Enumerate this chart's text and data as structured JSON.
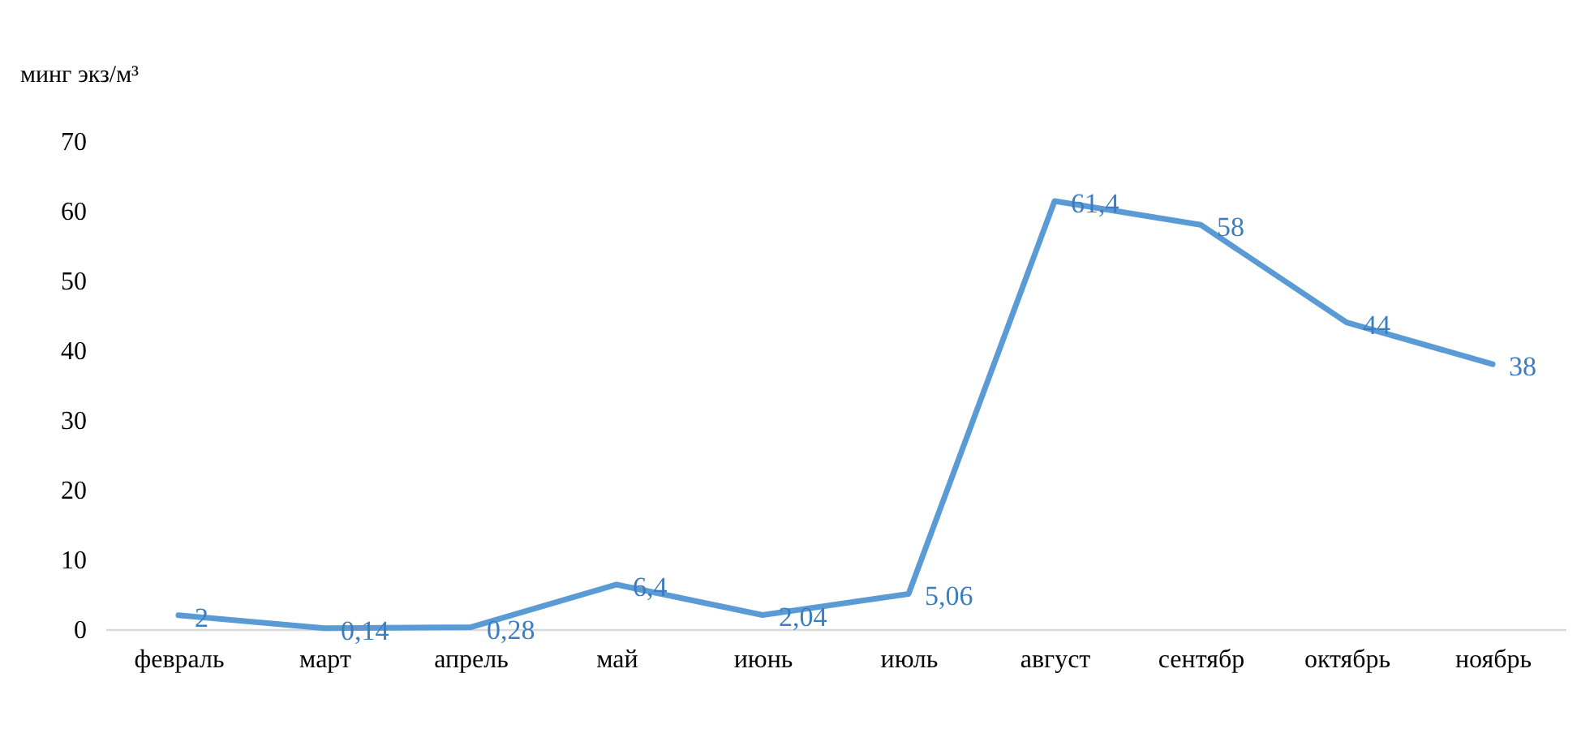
{
  "chart_data": {
    "type": "line",
    "ylabel": "минг экз/м³",
    "categories": [
      "февраль",
      "март",
      "апрель",
      "май",
      "июнь",
      "июль",
      "август",
      "сентябр",
      "октябрь",
      "ноябрь"
    ],
    "values": [
      2,
      0.14,
      0.28,
      6.4,
      2.04,
      5.06,
      61.4,
      58,
      44,
      38
    ],
    "value_labels": [
      "2",
      "0,14",
      "0,28",
      "6,4",
      "2,04",
      "5,06",
      "61,4",
      "58",
      "44",
      "38"
    ],
    "color": "#5b9bd5",
    "ylim": [
      0,
      70
    ],
    "yticks": [
      0,
      10,
      20,
      30,
      40,
      50,
      60,
      70
    ],
    "line_style": "solid"
  }
}
